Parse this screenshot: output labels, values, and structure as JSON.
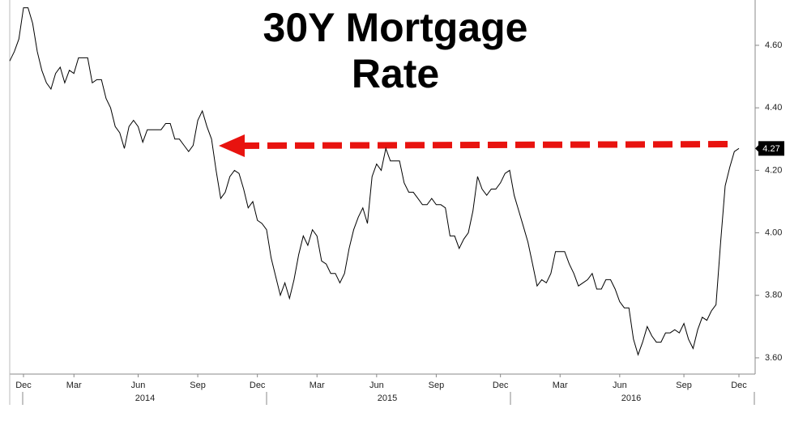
{
  "chart_data": {
    "type": "line",
    "title": "30Y Mortgage Rate",
    "categories": [
      null,
      null,
      null,
      "Dec",
      null,
      null,
      null,
      null,
      null,
      null,
      null,
      null,
      null,
      null,
      "Mar",
      null,
      null,
      null,
      null,
      null,
      null,
      null,
      null,
      null,
      null,
      null,
      null,
      null,
      "Jun",
      null,
      null,
      null,
      null,
      null,
      null,
      null,
      null,
      null,
      null,
      null,
      null,
      "Sep",
      null,
      null,
      null,
      null,
      null,
      null,
      null,
      null,
      null,
      null,
      null,
      null,
      "Dec",
      null,
      null,
      null,
      null,
      null,
      null,
      null,
      null,
      null,
      null,
      null,
      null,
      "Mar",
      null,
      null,
      null,
      null,
      null,
      null,
      null,
      null,
      null,
      null,
      null,
      null,
      "Jun",
      null,
      null,
      null,
      null,
      null,
      null,
      null,
      null,
      null,
      null,
      null,
      null,
      "Sep",
      null,
      null,
      null,
      null,
      null,
      null,
      null,
      null,
      null,
      null,
      null,
      null,
      null,
      "Dec",
      null,
      null,
      null,
      null,
      null,
      null,
      null,
      null,
      null,
      null,
      null,
      null,
      "Mar",
      null,
      null,
      null,
      null,
      null,
      null,
      null,
      null,
      null,
      null,
      null,
      null,
      "Jun",
      null,
      null,
      null,
      null,
      null,
      null,
      null,
      null,
      null,
      null,
      null,
      null,
      null,
      "Sep",
      null,
      null,
      null,
      null,
      null,
      null,
      null,
      null,
      null,
      null,
      null,
      "Dec"
    ],
    "years": [
      "2014",
      "2015",
      "2016"
    ],
    "series": [
      {
        "color": "#000000",
        "values": [
          4.55,
          4.58,
          4.62,
          4.72,
          4.72,
          4.67,
          4.58,
          4.52,
          4.48,
          4.46,
          4.51,
          4.53,
          4.48,
          4.52,
          4.51,
          4.56,
          4.56,
          4.56,
          4.48,
          4.49,
          4.49,
          4.43,
          4.4,
          4.34,
          4.32,
          4.27,
          4.34,
          4.36,
          4.34,
          4.29,
          4.33,
          4.33,
          4.33,
          4.33,
          4.35,
          4.35,
          4.3,
          4.3,
          4.28,
          4.26,
          4.28,
          4.36,
          4.39,
          4.34,
          4.3,
          4.2,
          4.11,
          4.13,
          4.18,
          4.2,
          4.19,
          4.14,
          4.08,
          4.1,
          4.04,
          4.03,
          4.01,
          3.92,
          3.86,
          3.8,
          3.84,
          3.79,
          3.85,
          3.93,
          3.99,
          3.96,
          4.01,
          3.99,
          3.91,
          3.9,
          3.87,
          3.87,
          3.84,
          3.87,
          3.95,
          4.01,
          4.05,
          4.08,
          4.03,
          4.18,
          4.22,
          4.2,
          4.27,
          4.23,
          4.23,
          4.23,
          4.16,
          4.13,
          4.13,
          4.11,
          4.09,
          4.09,
          4.11,
          4.09,
          4.09,
          4.08,
          3.99,
          3.99,
          3.95,
          3.98,
          4.0,
          4.07,
          4.18,
          4.14,
          4.12,
          4.14,
          4.14,
          4.16,
          4.19,
          4.2,
          4.12,
          4.07,
          4.02,
          3.97,
          3.9,
          3.83,
          3.85,
          3.84,
          3.87,
          3.94,
          3.94,
          3.94,
          3.9,
          3.87,
          3.83,
          3.84,
          3.85,
          3.87,
          3.82,
          3.82,
          3.85,
          3.85,
          3.82,
          3.78,
          3.76,
          3.76,
          3.66,
          3.61,
          3.65,
          3.7,
          3.67,
          3.65,
          3.65,
          3.68,
          3.68,
          3.69,
          3.68,
          3.71,
          3.66,
          3.63,
          3.69,
          3.73,
          3.72,
          3.75,
          3.77,
          3.97,
          4.15,
          4.21,
          4.26,
          4.27
        ]
      }
    ],
    "last_value": 4.27,
    "ylim": [
      3.548,
      4.745
    ],
    "yticks": [
      {
        "value": 3.6,
        "label": "3.60"
      },
      {
        "value": 3.8,
        "label": "3.80"
      },
      {
        "value": 4.0,
        "label": "4.00"
      },
      {
        "value": 4.2,
        "label": "4.20"
      },
      {
        "value": 4.4,
        "label": "4.40"
      },
      {
        "value": 4.6,
        "label": "4.60"
      }
    ],
    "grid": false
  }
}
